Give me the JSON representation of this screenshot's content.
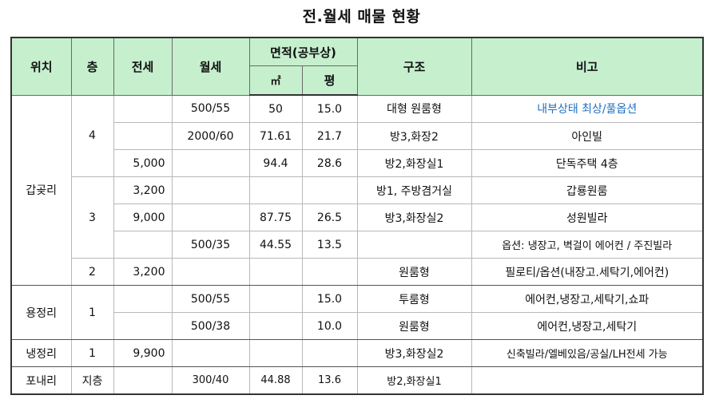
{
  "title": "전.월세 매물 현황",
  "headers": {
    "location": "위치",
    "floor": "층",
    "jeonse": "전세",
    "wolse": "월세",
    "area_group": "면적(공부상)",
    "area_sqm": "㎡",
    "area_pyeong": "평",
    "structure": "구조",
    "remarks": "비고"
  },
  "colors": {
    "header_bg": "#c6efce",
    "highlight_text": "#1f6fbf"
  },
  "rows": [
    {
      "location": "갑곶리",
      "floor": "4",
      "jeonse": "",
      "wolse": "500/55",
      "sqm": "50",
      "pyeong": "15.0",
      "structure": "대형 원룸형",
      "remarks": "내부상태 최상/풀옵션"
    },
    {
      "location": "",
      "floor": "",
      "jeonse": "",
      "wolse": "2000/60",
      "sqm": "71.61",
      "pyeong": "21.7",
      "structure": "방3,화장2",
      "remarks": "아인빌"
    },
    {
      "location": "",
      "floor": "",
      "jeonse": "5,000",
      "wolse": "",
      "sqm": "94.4",
      "pyeong": "28.6",
      "structure": "방2,화장실1",
      "remarks": "단독주택 4층"
    },
    {
      "location": "",
      "floor": "3",
      "jeonse": "3,200",
      "wolse": "",
      "sqm": "",
      "pyeong": "",
      "structure": "방1, 주방겸거실",
      "remarks": "갑룡원룸"
    },
    {
      "location": "",
      "floor": "",
      "jeonse": "9,000",
      "wolse": "",
      "sqm": "87.75",
      "pyeong": "26.5",
      "structure": "방3,화장실2",
      "remarks": "성원빌라"
    },
    {
      "location": "",
      "floor": "",
      "jeonse": "",
      "wolse": "500/35",
      "sqm": "44.55",
      "pyeong": "13.5",
      "structure": "",
      "remarks": "옵션: 냉장고, 벽걸이 에어컨 / 주진빌라"
    },
    {
      "location": "",
      "floor": "2",
      "jeonse": "3,200",
      "wolse": "",
      "sqm": "",
      "pyeong": "",
      "structure": "원룸형",
      "remarks": "필로티/옵션(내장고.세탁기,에어컨)"
    },
    {
      "location": "용정리",
      "floor": "1",
      "jeonse": "",
      "wolse": "500/55",
      "sqm": "",
      "pyeong": "15.0",
      "structure": "투룸형",
      "remarks": "에어컨,냉장고,세탁기,쇼파"
    },
    {
      "location": "",
      "floor": "",
      "jeonse": "",
      "wolse": "500/38",
      "sqm": "",
      "pyeong": "10.0",
      "structure": "원룸형",
      "remarks": "에어컨,냉장고,세탁기"
    },
    {
      "location": "냉정리",
      "floor": "1",
      "jeonse": "9,900",
      "wolse": "",
      "sqm": "",
      "pyeong": "",
      "structure": "방3,화장실2",
      "remarks": "신축빌라/엘베있음/공실/LH전세 가능"
    },
    {
      "location": "포내리",
      "floor": "지층",
      "jeonse": "",
      "wolse": "300/40",
      "sqm": "44.88",
      "pyeong": "13.6",
      "structure": "방2,화장실1",
      "remarks": ""
    }
  ]
}
